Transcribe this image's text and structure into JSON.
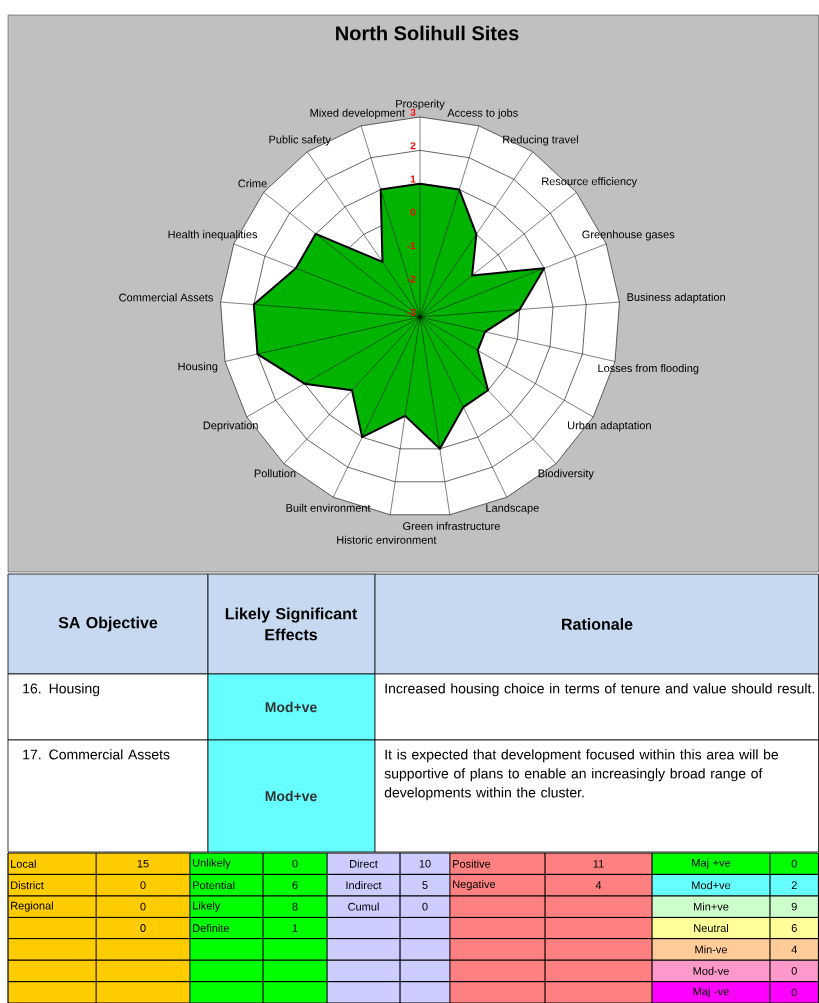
{
  "chart_data": {
    "type": "radar",
    "title": "North Solihull Sites",
    "categories": [
      "Prosperity",
      "Access to jobs",
      "Reducing  travel",
      "Resource efficiency",
      "Greenhouse gases",
      "Business adaptation",
      "Losses from flooding",
      "Urban adaptation",
      "Biodiversity",
      "Landscape",
      "Green infrastructure",
      "Historic environment",
      "Built environment",
      "Pollution",
      "Deprivation",
      "Housing",
      "Commercial Assets",
      "Health inequalities",
      "Crime",
      "Public safety",
      "Mixed development"
    ],
    "series": [
      {
        "color": "#00b400",
        "values": [
          1,
          1,
          0,
          -1,
          1,
          0,
          -1,
          -1,
          0,
          0,
          1,
          0,
          1,
          0,
          1,
          2,
          2,
          1,
          1,
          -1,
          1
        ]
      }
    ],
    "ylim": [
      -3,
      3
    ],
    "yticks": [
      -3,
      -2,
      -1,
      0,
      1,
      2,
      3
    ],
    "annotations": [
      "SA Objective",
      "Likely Significant Effects",
      "Rationale",
      "16. Housing",
      "Mod+ve",
      "Increased housing choice in terms of tenure and value should result.",
      "17. Commercial Assets",
      "Mod+ve",
      "It is expected that development focused within this area will be supportive of plans to enable an increasingly broad range of developments within the cluster.",
      "Local",
      "15",
      "Unlikely",
      "0",
      "Direct",
      "10",
      "Positive",
      "11",
      "Maj +ve",
      "0",
      "District",
      "0",
      "Potential",
      "6",
      "Indirect",
      "5",
      "Negative",
      "4",
      "Mod+ve",
      "2",
      "Regional",
      "0",
      "Likely",
      "8",
      "Cumul",
      "0",
      "Min+ve",
      "9",
      "0",
      "Definite",
      "1",
      "Neutral",
      "6",
      "Min-ve",
      "4",
      "Mod-ve",
      "0",
      "Maj -ve",
      "0"
    ]
  }
}
